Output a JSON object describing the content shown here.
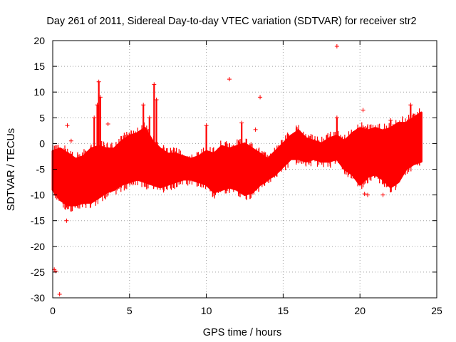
{
  "chart_data": {
    "type": "scatter",
    "title": "Day 261 of 2011, Sidereal Day-to-day VTEC variation (SDTVAR) for receiver str2",
    "xlabel": "GPS time / hours",
    "ylabel": "SDTVAR / TECUs",
    "xlim": [
      0,
      25
    ],
    "ylim": [
      -30,
      20
    ],
    "xticks": [
      0,
      5,
      10,
      15,
      20,
      25
    ],
    "yticks": [
      -30,
      -25,
      -20,
      -15,
      -10,
      -5,
      0,
      5,
      10,
      15,
      20
    ],
    "grid": true,
    "marker": "+",
    "color": "#ff0000",
    "band": {
      "x": [
        0.0,
        0.5,
        1.0,
        1.5,
        2.0,
        2.5,
        3.0,
        3.5,
        4.0,
        4.5,
        5.0,
        5.5,
        6.0,
        6.5,
        7.0,
        7.5,
        8.0,
        8.5,
        9.0,
        9.5,
        10.0,
        10.5,
        11.0,
        11.5,
        12.0,
        12.5,
        13.0,
        13.5,
        14.0,
        14.5,
        15.0,
        15.5,
        16.0,
        16.5,
        17.0,
        17.5,
        18.0,
        18.5,
        19.0,
        19.5,
        20.0,
        20.5,
        21.0,
        21.5,
        22.0,
        22.5,
        23.0,
        23.5,
        24.0
      ],
      "upper": [
        -1.5,
        -1.0,
        -2.0,
        -3.0,
        -2.5,
        -1.0,
        -0.5,
        -1.0,
        -1.0,
        0.5,
        1.5,
        2.0,
        3.0,
        0.5,
        -1.0,
        -2.0,
        -2.0,
        -2.5,
        -3.0,
        -2.5,
        -1.5,
        -2.0,
        -0.5,
        -1.0,
        -0.5,
        0.0,
        -1.0,
        -2.0,
        -3.0,
        -1.5,
        0.0,
        1.5,
        2.5,
        1.0,
        0.5,
        0.0,
        1.0,
        1.5,
        0.5,
        2.0,
        3.0,
        2.5,
        3.0,
        2.5,
        3.0,
        4.0,
        4.0,
        5.0,
        6.0
      ],
      "lower": [
        -9.0,
        -11.0,
        -12.0,
        -12.0,
        -11.5,
        -11.5,
        -10.5,
        -9.5,
        -9.0,
        -8.0,
        -7.5,
        -7.0,
        -7.5,
        -8.0,
        -8.5,
        -8.0,
        -7.5,
        -7.0,
        -7.0,
        -7.5,
        -8.0,
        -9.5,
        -9.0,
        -8.5,
        -9.0,
        -10.0,
        -9.5,
        -8.0,
        -7.0,
        -6.0,
        -4.5,
        -3.0,
        -3.0,
        -3.5,
        -3.0,
        -3.5,
        -3.5,
        -3.0,
        -5.0,
        -6.0,
        -8.0,
        -6.5,
        -6.0,
        -7.0,
        -8.5,
        -7.5,
        -5.0,
        -4.0,
        -3.5
      ]
    },
    "spikes": [
      {
        "x": 2.7,
        "high": 5.0,
        "low": -4.0
      },
      {
        "x": 2.9,
        "high": 7.5,
        "low": -5.0
      },
      {
        "x": 3.0,
        "high": 12.0,
        "low": -3.0
      },
      {
        "x": 3.1,
        "high": 9.0,
        "low": -2.0
      },
      {
        "x": 5.9,
        "high": 7.5,
        "low": -2.0
      },
      {
        "x": 6.3,
        "high": 5.0,
        "low": -2.0
      },
      {
        "x": 6.6,
        "high": 11.5,
        "low": -1.0
      },
      {
        "x": 6.75,
        "high": 8.5,
        "low": -2.0
      },
      {
        "x": 10.0,
        "high": 3.5,
        "low": -6.0
      },
      {
        "x": 12.3,
        "high": 4.0,
        "low": -5.0
      },
      {
        "x": 18.5,
        "high": 5.0,
        "low": -2.0
      },
      {
        "x": 22.0,
        "high": 4.5,
        "low": -9.5
      },
      {
        "x": 23.3,
        "high": 7.5,
        "low": -2.0
      }
    ],
    "outliers": [
      {
        "x": 0.1,
        "y": -24.5
      },
      {
        "x": 0.2,
        "y": -24.8
      },
      {
        "x": 0.45,
        "y": -29.3
      },
      {
        "x": 0.9,
        "y": -15.0
      },
      {
        "x": 0.95,
        "y": 3.5
      },
      {
        "x": 1.2,
        "y": 0.5
      },
      {
        "x": 3.6,
        "y": 3.8
      },
      {
        "x": 11.5,
        "y": 12.5
      },
      {
        "x": 13.2,
        "y": 2.7
      },
      {
        "x": 13.5,
        "y": 9.0
      },
      {
        "x": 18.5,
        "y": 18.9
      },
      {
        "x": 20.2,
        "y": 6.5
      },
      {
        "x": 20.3,
        "y": -9.8
      },
      {
        "x": 20.5,
        "y": -10.0
      },
      {
        "x": 21.5,
        "y": -10.0
      }
    ]
  }
}
